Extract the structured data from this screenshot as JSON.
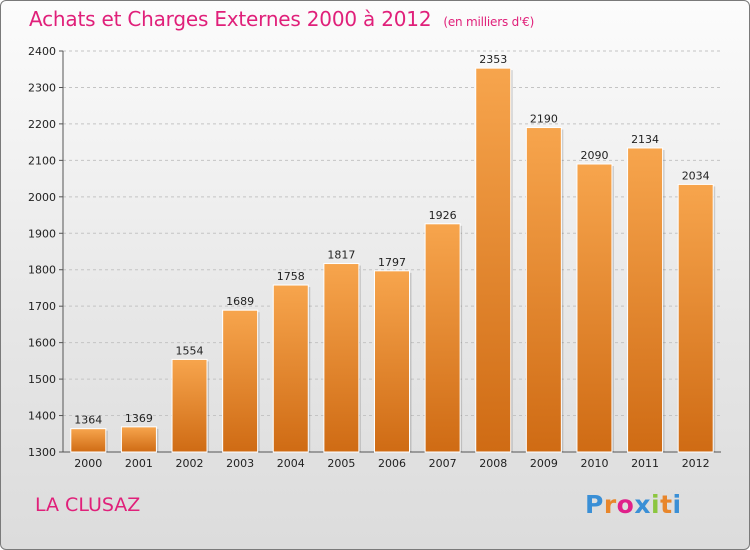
{
  "header": {
    "title": "Achats et Charges Externes 2000 à 2012",
    "unit": "(en milliers d'€)"
  },
  "footer": {
    "commune": "LA CLUSAZ",
    "logo_letters": [
      "P",
      "r",
      "o",
      "x",
      "i",
      "t",
      "i"
    ],
    "logo_colors": [
      "#3a8fd6",
      "#e8862b",
      "#e0208a",
      "#3a8fd6",
      "#8cc63f",
      "#e8862b",
      "#3a8fd6"
    ]
  },
  "colors": {
    "bar_top": "#f7a54d",
    "bar_bottom": "#cf6b14",
    "title": "#e0207a"
  },
  "chart_data": {
    "type": "bar",
    "title": "Achats et Charges Externes 2000 à 2012",
    "categories": [
      "2000",
      "2001",
      "2002",
      "2003",
      "2004",
      "2005",
      "2006",
      "2007",
      "2008",
      "2009",
      "2010",
      "2011",
      "2012"
    ],
    "values": [
      1364,
      1369,
      1554,
      1689,
      1758,
      1817,
      1797,
      1926,
      2353,
      2190,
      2090,
      2134,
      2034
    ],
    "ylim": [
      1300,
      2400
    ],
    "yticks": [
      1300,
      1400,
      1500,
      1600,
      1700,
      1800,
      1900,
      2000,
      2100,
      2200,
      2300,
      2400
    ],
    "grid": true
  }
}
